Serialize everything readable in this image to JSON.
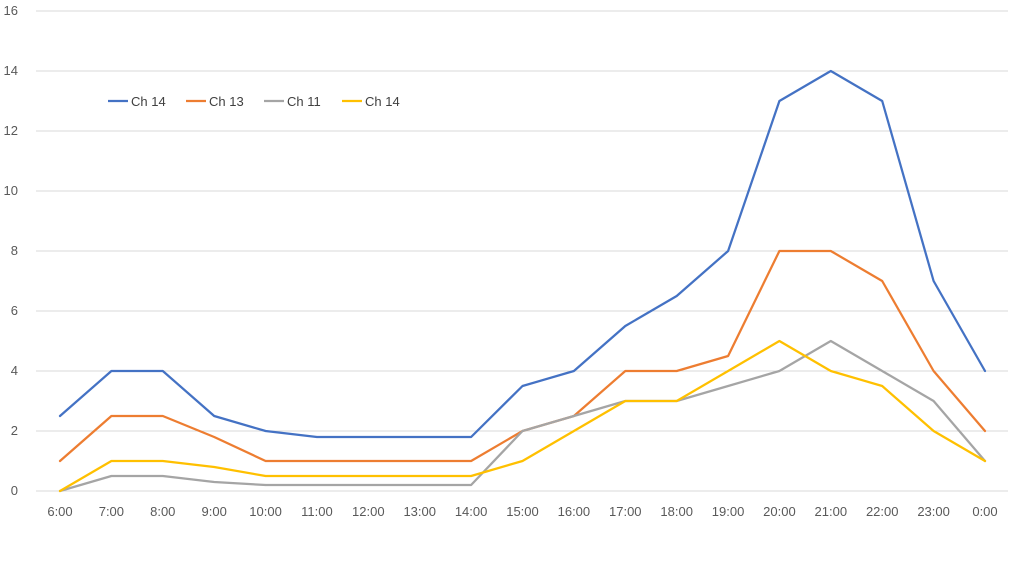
{
  "chart_data": {
    "type": "line",
    "title": "",
    "xlabel": "",
    "ylabel": "",
    "categories": [
      "6:00",
      "7:00",
      "8:00",
      "9:00",
      "10:00",
      "11:00",
      "12:00",
      "13:00",
      "14:00",
      "15:00",
      "16:00",
      "17:00",
      "18:00",
      "19:00",
      "20:00",
      "21:00",
      "22:00",
      "23:00",
      "0:00"
    ],
    "ylim": [
      0,
      16
    ],
    "yticks": [
      0,
      2,
      4,
      6,
      8,
      10,
      12,
      14,
      16
    ],
    "grid": true,
    "legend_position": "top-left",
    "series": [
      {
        "name": "Ch 14",
        "color": "#4472C4",
        "values": [
          2.5,
          4,
          4,
          2.5,
          2,
          1.8,
          1.8,
          1.8,
          1.8,
          3.5,
          4,
          5.5,
          6.5,
          8,
          13,
          14,
          13,
          7,
          4
        ]
      },
      {
        "name": "Ch 13",
        "color": "#ED7D31",
        "values": [
          1,
          2.5,
          2.5,
          1.8,
          1,
          1,
          1,
          1,
          1,
          2,
          2.5,
          4,
          4,
          4.5,
          8,
          8,
          7,
          4,
          2
        ]
      },
      {
        "name": "Ch 11",
        "color": "#A5A5A5",
        "values": [
          0,
          0.5,
          0.5,
          0.3,
          0.2,
          0.2,
          0.2,
          0.2,
          0.2,
          2,
          2.5,
          3,
          3,
          3.5,
          4,
          5,
          4,
          3,
          1
        ]
      },
      {
        "name": "Ch 14",
        "color": "#FFC000",
        "values": [
          0,
          1,
          1,
          0.8,
          0.5,
          0.5,
          0.5,
          0.5,
          0.5,
          1,
          2,
          3,
          3,
          4,
          5,
          4,
          3.5,
          2,
          1
        ]
      }
    ]
  }
}
